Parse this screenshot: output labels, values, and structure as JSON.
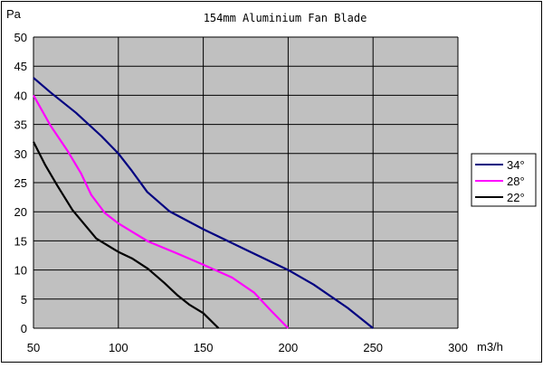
{
  "chart_data": {
    "type": "line",
    "title": "154mm Aluminium Fan Blade",
    "xlabel": "m3/h",
    "ylabel": "Pa",
    "xlim": [
      50,
      300
    ],
    "ylim": [
      0,
      50
    ],
    "xticks": [
      50,
      100,
      150,
      200,
      250,
      300
    ],
    "yticks": [
      0,
      5,
      10,
      15,
      20,
      25,
      30,
      35,
      40,
      45,
      50
    ],
    "grid": true,
    "plot_background": "#c0c0c0",
    "legend_position": "right",
    "series": [
      {
        "name": "34°",
        "color": "#000080",
        "x": [
          50,
          60,
          75,
          90,
          100,
          108,
          117,
          130,
          150,
          175,
          200,
          215,
          235,
          250
        ],
        "y": [
          43,
          40.5,
          37,
          33,
          30,
          27,
          23.4,
          20.1,
          17,
          13.5,
          10,
          7.5,
          3.5,
          0
        ]
      },
      {
        "name": "28°",
        "color": "#ff00ff",
        "x": [
          50,
          60,
          70,
          78,
          84,
          92,
          100,
          117.5,
          135,
          150,
          167,
          180,
          190,
          200
        ],
        "y": [
          40,
          34.8,
          30.5,
          26.6,
          22.9,
          19.8,
          18,
          14.9,
          12.8,
          10.9,
          8.7,
          6.1,
          3,
          0
        ]
      },
      {
        "name": "22°",
        "color": "#000000",
        "x": [
          50,
          57,
          64,
          73,
          87,
          100,
          108,
          117.5,
          127,
          135,
          142,
          150,
          159
        ],
        "y": [
          32,
          28,
          24.5,
          20.3,
          15.4,
          13.1,
          12,
          10.2,
          7.8,
          5.6,
          4,
          2.6,
          0
        ]
      }
    ]
  }
}
